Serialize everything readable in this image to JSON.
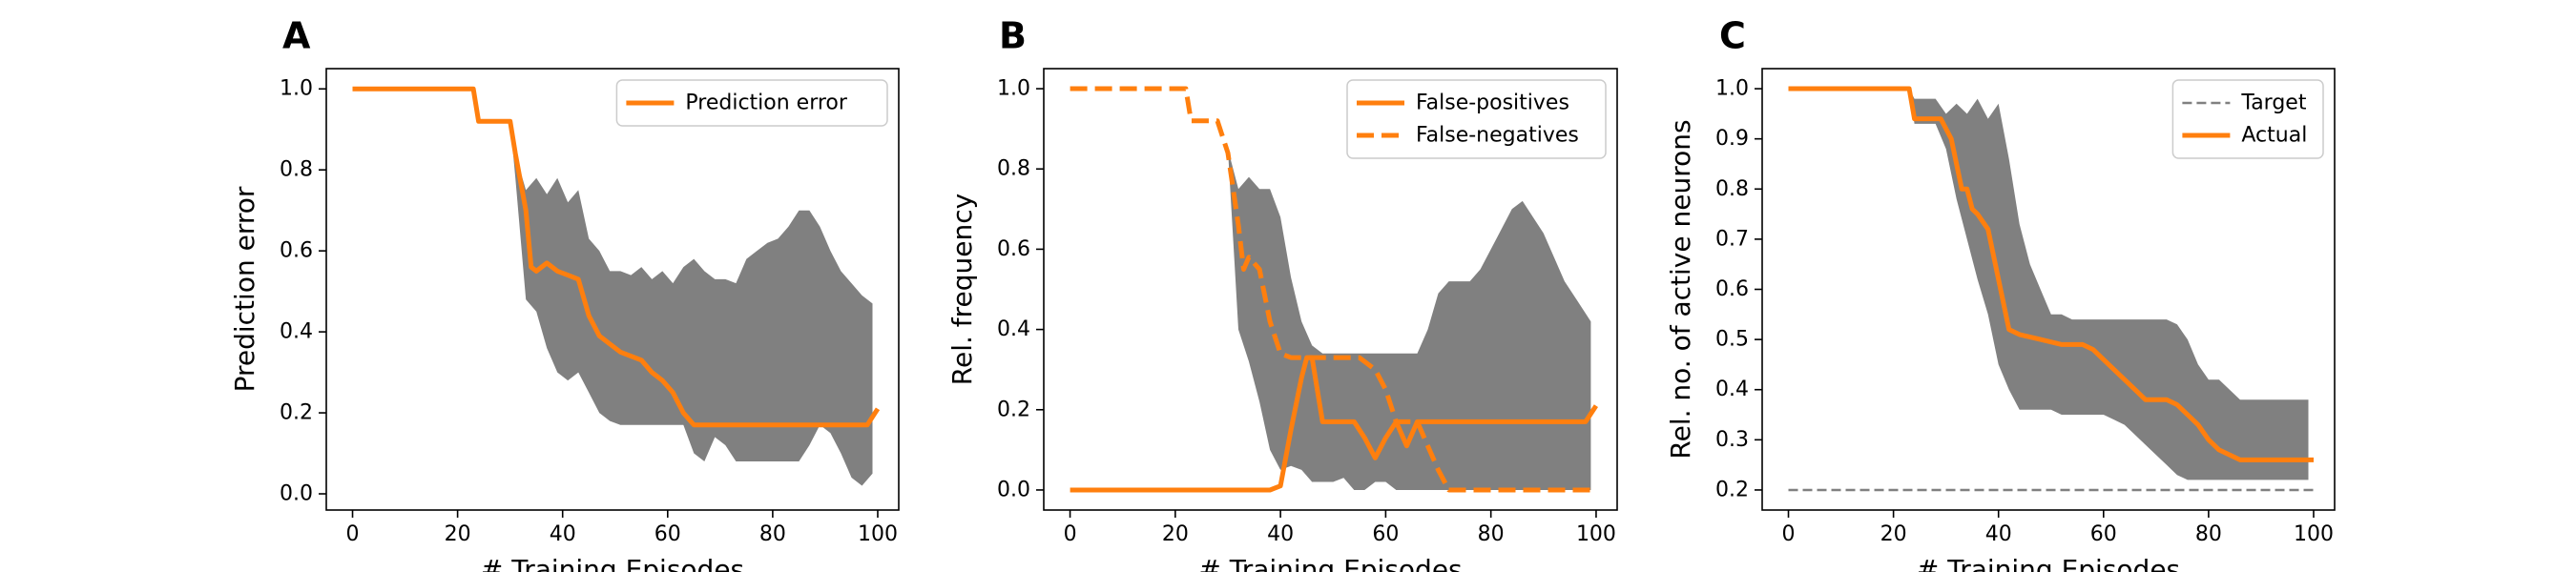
{
  "colors": {
    "line": "#ff7f0e",
    "band": "#808080",
    "target": "#808080",
    "axis": "#000000"
  },
  "chart_data": [
    {
      "panel": "A",
      "type": "line",
      "xlabel": "# Training Episodes",
      "ylabel": "Prediction error",
      "xlim": [
        -5,
        104
      ],
      "ylim": [
        -0.04,
        1.05
      ],
      "xticks": [
        0,
        20,
        40,
        60,
        80,
        100
      ],
      "xtick_labels": [
        "0",
        "20",
        "40",
        "60",
        "80",
        "100"
      ],
      "yticks": [
        0.0,
        0.2,
        0.4,
        0.6,
        0.8,
        1.0
      ],
      "ytick_labels": [
        "0.0",
        "0.2",
        "0.4",
        "0.6",
        "0.8",
        "1.0"
      ],
      "legend_position": "upper right",
      "band": {
        "x": [
          0,
          23,
          24,
          30,
          31,
          33,
          35,
          37,
          39,
          41,
          43,
          45,
          47,
          49,
          51,
          53,
          55,
          57,
          59,
          61,
          63,
          65,
          67,
          69,
          71,
          73,
          75,
          77,
          79,
          81,
          83,
          85,
          87,
          89,
          91,
          93,
          95,
          97,
          99
        ],
        "upper": [
          1.0,
          1.0,
          0.92,
          0.92,
          0.84,
          0.75,
          0.78,
          0.74,
          0.78,
          0.72,
          0.75,
          0.63,
          0.6,
          0.55,
          0.55,
          0.54,
          0.56,
          0.53,
          0.55,
          0.52,
          0.56,
          0.58,
          0.55,
          0.53,
          0.53,
          0.52,
          0.58,
          0.6,
          0.62,
          0.63,
          0.66,
          0.7,
          0.7,
          0.66,
          0.6,
          0.55,
          0.52,
          0.49,
          0.47
        ],
        "lower": [
          1.0,
          1.0,
          0.92,
          0.92,
          0.78,
          0.48,
          0.45,
          0.36,
          0.3,
          0.28,
          0.3,
          0.25,
          0.2,
          0.18,
          0.17,
          0.17,
          0.17,
          0.17,
          0.17,
          0.17,
          0.17,
          0.1,
          0.08,
          0.14,
          0.12,
          0.08,
          0.08,
          0.08,
          0.08,
          0.08,
          0.08,
          0.08,
          0.12,
          0.17,
          0.15,
          0.1,
          0.04,
          0.02,
          0.05
        ]
      },
      "series": [
        {
          "name": "Prediction error",
          "style": "solid",
          "x": [
            0,
            23,
            24,
            30,
            31,
            33,
            34,
            35,
            37,
            39,
            41,
            43,
            45,
            47,
            49,
            51,
            53,
            55,
            57,
            59,
            61,
            63,
            65,
            67,
            70,
            75,
            80,
            85,
            90,
            95,
            98,
            100
          ],
          "y": [
            1.0,
            1.0,
            0.92,
            0.92,
            0.84,
            0.7,
            0.56,
            0.55,
            0.57,
            0.55,
            0.54,
            0.53,
            0.44,
            0.39,
            0.37,
            0.35,
            0.34,
            0.33,
            0.3,
            0.28,
            0.25,
            0.2,
            0.17,
            0.17,
            0.17,
            0.17,
            0.17,
            0.17,
            0.17,
            0.17,
            0.17,
            0.21
          ]
        }
      ]
    },
    {
      "panel": "B",
      "type": "line",
      "xlabel": "# Training Episodes",
      "ylabel": "Rel. frequency",
      "xlim": [
        -5,
        104
      ],
      "ylim": [
        -0.05,
        1.05
      ],
      "xticks": [
        0,
        20,
        40,
        60,
        80,
        100
      ],
      "xtick_labels": [
        "0",
        "20",
        "40",
        "60",
        "80",
        "100"
      ],
      "yticks": [
        0.0,
        0.2,
        0.4,
        0.6,
        0.8,
        1.0
      ],
      "ytick_labels": [
        "0.0",
        "0.2",
        "0.4",
        "0.6",
        "0.8",
        "1.0"
      ],
      "legend_position": "upper right",
      "band": {
        "x": [
          0,
          23,
          25,
          28,
          30,
          32,
          34,
          36,
          38,
          40,
          42,
          44,
          46,
          48,
          50,
          52,
          54,
          56,
          58,
          60,
          62,
          64,
          66,
          68,
          70,
          72,
          74,
          76,
          78,
          80,
          82,
          84,
          86,
          88,
          90,
          92,
          94,
          96,
          98,
          99
        ],
        "upper": [
          1.0,
          1.0,
          0.92,
          0.92,
          0.85,
          0.75,
          0.78,
          0.75,
          0.75,
          0.68,
          0.53,
          0.42,
          0.36,
          0.34,
          0.34,
          0.34,
          0.34,
          0.34,
          0.34,
          0.34,
          0.34,
          0.34,
          0.34,
          0.4,
          0.49,
          0.52,
          0.52,
          0.52,
          0.55,
          0.6,
          0.65,
          0.7,
          0.72,
          0.68,
          0.64,
          0.58,
          0.52,
          0.48,
          0.44,
          0.42
        ],
        "lower": [
          1.0,
          1.0,
          0.92,
          0.92,
          0.85,
          0.4,
          0.32,
          0.22,
          0.1,
          0.05,
          0.06,
          0.05,
          0.02,
          0.02,
          0.02,
          0.03,
          0.0,
          0.0,
          0.02,
          0.02,
          0.0,
          0.0,
          0.0,
          0.0,
          0.0,
          0.0,
          0.0,
          0.0,
          0.0,
          0.0,
          0.0,
          0.0,
          0.0,
          0.0,
          0.0,
          0.0,
          0.0,
          0.0,
          0.0,
          0.0
        ]
      },
      "series": [
        {
          "name": "False-positives",
          "style": "solid",
          "x": [
            0,
            20,
            30,
            38,
            40,
            42,
            44,
            45,
            46,
            48,
            50,
            52,
            54,
            56,
            58,
            60,
            62,
            64,
            66,
            68,
            70,
            75,
            80,
            85,
            90,
            95,
            98,
            100
          ],
          "y": [
            0.0,
            0.0,
            0.0,
            0.0,
            0.01,
            0.15,
            0.28,
            0.33,
            0.33,
            0.17,
            0.17,
            0.17,
            0.17,
            0.13,
            0.08,
            0.13,
            0.17,
            0.11,
            0.17,
            0.17,
            0.17,
            0.17,
            0.17,
            0.17,
            0.17,
            0.17,
            0.17,
            0.21
          ]
        },
        {
          "name": "False-negatives",
          "style": "dashed",
          "x": [
            0,
            22,
            23,
            28,
            30,
            32,
            33,
            34,
            36,
            38,
            39,
            40,
            42,
            44,
            46,
            50,
            55,
            58,
            60,
            62,
            64,
            66,
            68,
            70,
            72,
            75,
            80,
            90,
            100
          ],
          "y": [
            1.0,
            1.0,
            0.92,
            0.92,
            0.84,
            0.66,
            0.55,
            0.58,
            0.55,
            0.42,
            0.38,
            0.34,
            0.33,
            0.33,
            0.33,
            0.33,
            0.33,
            0.3,
            0.25,
            0.17,
            0.17,
            0.17,
            0.11,
            0.05,
            0.0,
            0.0,
            0.0,
            0.0,
            0.0
          ]
        }
      ]
    },
    {
      "panel": "C",
      "type": "line",
      "xlabel": "# Training Episodes",
      "ylabel": "Rel. no. of active neurons",
      "xlim": [
        -5,
        104
      ],
      "ylim": [
        0.16,
        1.04
      ],
      "xticks": [
        0,
        20,
        40,
        60,
        80,
        100
      ],
      "xtick_labels": [
        "0",
        "20",
        "40",
        "60",
        "80",
        "100"
      ],
      "yticks": [
        0.2,
        0.3,
        0.4,
        0.5,
        0.6,
        0.7,
        0.8,
        0.9,
        1.0
      ],
      "ytick_labels": [
        "0.2",
        "0.3",
        "0.4",
        "0.5",
        "0.6",
        "0.7",
        "0.8",
        "0.9",
        "1.0"
      ],
      "legend_position": "upper right",
      "band": {
        "x": [
          0,
          23,
          24,
          28,
          30,
          32,
          34,
          36,
          38,
          40,
          42,
          44,
          46,
          48,
          50,
          52,
          54,
          56,
          58,
          60,
          62,
          64,
          66,
          68,
          70,
          72,
          74,
          76,
          78,
          80,
          82,
          84,
          86,
          88,
          90,
          92,
          94,
          96,
          98,
          99
        ],
        "upper": [
          1.0,
          1.0,
          0.98,
          0.98,
          0.95,
          0.97,
          0.95,
          0.98,
          0.94,
          0.97,
          0.86,
          0.73,
          0.65,
          0.6,
          0.55,
          0.55,
          0.54,
          0.54,
          0.54,
          0.54,
          0.54,
          0.54,
          0.54,
          0.54,
          0.54,
          0.54,
          0.53,
          0.5,
          0.45,
          0.42,
          0.42,
          0.4,
          0.38,
          0.38,
          0.38,
          0.38,
          0.38,
          0.38,
          0.38,
          0.38
        ],
        "lower": [
          1.0,
          1.0,
          0.93,
          0.93,
          0.88,
          0.78,
          0.7,
          0.62,
          0.55,
          0.45,
          0.4,
          0.36,
          0.36,
          0.36,
          0.36,
          0.35,
          0.35,
          0.35,
          0.35,
          0.35,
          0.34,
          0.33,
          0.31,
          0.29,
          0.27,
          0.25,
          0.23,
          0.22,
          0.22,
          0.22,
          0.22,
          0.22,
          0.22,
          0.22,
          0.22,
          0.22,
          0.22,
          0.22,
          0.22,
          0.22
        ]
      },
      "series": [
        {
          "name": "Target",
          "style": "dashed-thin",
          "x": [
            0,
            100
          ],
          "y": [
            0.2,
            0.2
          ]
        },
        {
          "name": "Actual",
          "style": "solid",
          "x": [
            0,
            23,
            24,
            29,
            30,
            31,
            32,
            33,
            34,
            35,
            36,
            38,
            40,
            42,
            44,
            48,
            52,
            56,
            58,
            60,
            62,
            64,
            66,
            68,
            70,
            72,
            74,
            76,
            78,
            80,
            82,
            84,
            86,
            88,
            90,
            92,
            94,
            96,
            98,
            100
          ],
          "y": [
            1.0,
            1.0,
            0.94,
            0.94,
            0.92,
            0.9,
            0.85,
            0.8,
            0.8,
            0.76,
            0.75,
            0.72,
            0.62,
            0.52,
            0.51,
            0.5,
            0.49,
            0.49,
            0.48,
            0.46,
            0.44,
            0.42,
            0.4,
            0.38,
            0.38,
            0.38,
            0.37,
            0.35,
            0.33,
            0.3,
            0.28,
            0.27,
            0.26,
            0.26,
            0.26,
            0.26,
            0.26,
            0.26,
            0.26,
            0.26
          ]
        }
      ]
    }
  ]
}
